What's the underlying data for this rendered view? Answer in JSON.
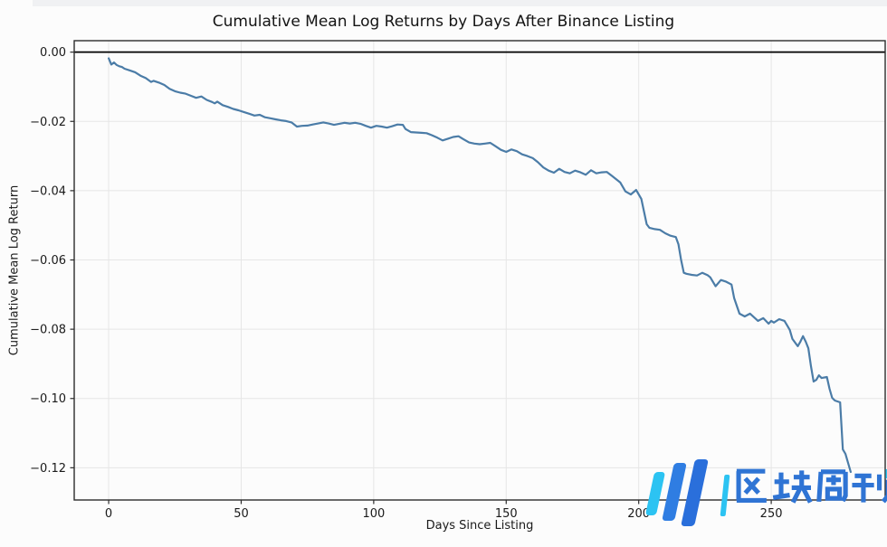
{
  "chart_data": {
    "type": "line",
    "title": "Cumulative Mean Log Returns by Days After Binance Listing",
    "xlabel": "Days Since Listing",
    "ylabel": "Cumulative Mean Log Return",
    "xlim": [
      -13,
      293
    ],
    "ylim": [
      -0.1293,
      0.0033
    ],
    "grid": true,
    "legend": false,
    "zero_line": 0,
    "x_ticks": [
      {
        "value": 0,
        "label": "0"
      },
      {
        "value": 50,
        "label": "50"
      },
      {
        "value": 100,
        "label": "100"
      },
      {
        "value": 150,
        "label": "150"
      },
      {
        "value": 200,
        "label": "200"
      },
      {
        "value": 250,
        "label": "250"
      }
    ],
    "y_ticks": [
      {
        "value": 0.0,
        "label": "0.00"
      },
      {
        "value": -0.02,
        "label": "−0.02"
      },
      {
        "value": -0.04,
        "label": "−0.04"
      },
      {
        "value": -0.06,
        "label": "−0.06"
      },
      {
        "value": -0.08,
        "label": "−0.08"
      },
      {
        "value": -0.1,
        "label": "−0.10"
      },
      {
        "value": -0.12,
        "label": "−0.12"
      }
    ],
    "colors": {
      "line": "#4b7ca7",
      "grid": "#e6e6e6",
      "zero_line": "#000000",
      "spine": "#2c2c2c",
      "text": "#1a1a1a"
    },
    "series": [
      {
        "name": "Cumulative mean log return",
        "points": [
          [
            0,
            -0.0018
          ],
          [
            1,
            -0.0036
          ],
          [
            2,
            -0.003
          ],
          [
            3,
            -0.0037
          ],
          [
            4,
            -0.0041
          ],
          [
            5,
            -0.0043
          ],
          [
            6,
            -0.0048
          ],
          [
            8,
            -0.0053
          ],
          [
            10,
            -0.0058
          ],
          [
            12,
            -0.0068
          ],
          [
            14,
            -0.0075
          ],
          [
            16,
            -0.0086
          ],
          [
            17,
            -0.0083
          ],
          [
            19,
            -0.0088
          ],
          [
            21,
            -0.0095
          ],
          [
            23,
            -0.0106
          ],
          [
            25,
            -0.0113
          ],
          [
            27,
            -0.0117
          ],
          [
            29,
            -0.012
          ],
          [
            31,
            -0.0126
          ],
          [
            33,
            -0.0132
          ],
          [
            35,
            -0.0128
          ],
          [
            37,
            -0.0138
          ],
          [
            39,
            -0.0144
          ],
          [
            40,
            -0.0148
          ],
          [
            41,
            -0.0143
          ],
          [
            43,
            -0.0153
          ],
          [
            45,
            -0.0158
          ],
          [
            47,
            -0.0164
          ],
          [
            49,
            -0.0168
          ],
          [
            51,
            -0.0173
          ],
          [
            53,
            -0.0178
          ],
          [
            55,
            -0.0183
          ],
          [
            57,
            -0.0181
          ],
          [
            59,
            -0.0188
          ],
          [
            61,
            -0.0191
          ],
          [
            63,
            -0.0194
          ],
          [
            65,
            -0.0197
          ],
          [
            67,
            -0.0199
          ],
          [
            69,
            -0.0203
          ],
          [
            71,
            -0.0215
          ],
          [
            73,
            -0.0213
          ],
          [
            75,
            -0.0212
          ],
          [
            77,
            -0.0209
          ],
          [
            79,
            -0.0206
          ],
          [
            81,
            -0.0203
          ],
          [
            83,
            -0.0206
          ],
          [
            85,
            -0.021
          ],
          [
            87,
            -0.0207
          ],
          [
            89,
            -0.0204
          ],
          [
            91,
            -0.0206
          ],
          [
            93,
            -0.0204
          ],
          [
            95,
            -0.0207
          ],
          [
            97,
            -0.0213
          ],
          [
            99,
            -0.0218
          ],
          [
            101,
            -0.0213
          ],
          [
            103,
            -0.0215
          ],
          [
            105,
            -0.0218
          ],
          [
            107,
            -0.0214
          ],
          [
            109,
            -0.0209
          ],
          [
            111,
            -0.021
          ],
          [
            112,
            -0.0222
          ],
          [
            114,
            -0.0231
          ],
          [
            116,
            -0.0232
          ],
          [
            118,
            -0.0233
          ],
          [
            120,
            -0.0234
          ],
          [
            122,
            -0.024
          ],
          [
            124,
            -0.0247
          ],
          [
            126,
            -0.0255
          ],
          [
            128,
            -0.025
          ],
          [
            130,
            -0.0245
          ],
          [
            132,
            -0.0243
          ],
          [
            134,
            -0.0252
          ],
          [
            136,
            -0.0261
          ],
          [
            138,
            -0.0264
          ],
          [
            140,
            -0.0266
          ],
          [
            142,
            -0.0264
          ],
          [
            144,
            -0.0262
          ],
          [
            146,
            -0.0272
          ],
          [
            148,
            -0.0282
          ],
          [
            150,
            -0.0288
          ],
          [
            152,
            -0.0281
          ],
          [
            154,
            -0.0286
          ],
          [
            156,
            -0.0295
          ],
          [
            158,
            -0.03
          ],
          [
            160,
            -0.0306
          ],
          [
            162,
            -0.0318
          ],
          [
            164,
            -0.0333
          ],
          [
            166,
            -0.0342
          ],
          [
            168,
            -0.0348
          ],
          [
            170,
            -0.0337
          ],
          [
            172,
            -0.0346
          ],
          [
            174,
            -0.035
          ],
          [
            176,
            -0.0342
          ],
          [
            178,
            -0.0347
          ],
          [
            180,
            -0.0354
          ],
          [
            182,
            -0.0341
          ],
          [
            184,
            -0.035
          ],
          [
            186,
            -0.0347
          ],
          [
            188,
            -0.0346
          ],
          [
            190,
            -0.0358
          ],
          [
            193,
            -0.0376
          ],
          [
            195,
            -0.0402
          ],
          [
            197,
            -0.0411
          ],
          [
            199,
            -0.0398
          ],
          [
            200,
            -0.0411
          ],
          [
            201,
            -0.0424
          ],
          [
            202,
            -0.046
          ],
          [
            203,
            -0.0497
          ],
          [
            204,
            -0.0507
          ],
          [
            206,
            -0.0511
          ],
          [
            208,
            -0.0513
          ],
          [
            210,
            -0.0523
          ],
          [
            212,
            -0.053
          ],
          [
            214,
            -0.0534
          ],
          [
            215,
            -0.0555
          ],
          [
            216,
            -0.06
          ],
          [
            217,
            -0.0637
          ],
          [
            218,
            -0.064
          ],
          [
            220,
            -0.0643
          ],
          [
            222,
            -0.0645
          ],
          [
            224,
            -0.0637
          ],
          [
            226,
            -0.0644
          ],
          [
            227,
            -0.065
          ],
          [
            229,
            -0.0676
          ],
          [
            231,
            -0.0658
          ],
          [
            233,
            -0.0663
          ],
          [
            235,
            -0.0671
          ],
          [
            236,
            -0.071
          ],
          [
            238,
            -0.0755
          ],
          [
            240,
            -0.0763
          ],
          [
            242,
            -0.0755
          ],
          [
            245,
            -0.0776
          ],
          [
            247,
            -0.0768
          ],
          [
            249,
            -0.0784
          ],
          [
            250,
            -0.0776
          ],
          [
            251,
            -0.0781
          ],
          [
            253,
            -0.0771
          ],
          [
            255,
            -0.0776
          ],
          [
            256,
            -0.0789
          ],
          [
            257,
            -0.0802
          ],
          [
            258,
            -0.0828
          ],
          [
            260,
            -0.0849
          ],
          [
            261,
            -0.0836
          ],
          [
            262,
            -0.082
          ],
          [
            263,
            -0.0836
          ],
          [
            264,
            -0.0855
          ],
          [
            265,
            -0.0907
          ],
          [
            266,
            -0.0951
          ],
          [
            267,
            -0.0946
          ],
          [
            268,
            -0.0933
          ],
          [
            269,
            -0.0941
          ],
          [
            271,
            -0.0938
          ],
          [
            272,
            -0.0972
          ],
          [
            273,
            -0.0998
          ],
          [
            274,
            -0.1006
          ],
          [
            276,
            -0.1011
          ],
          [
            277,
            -0.1147
          ],
          [
            278,
            -0.116
          ],
          [
            279,
            -0.1186
          ],
          [
            280,
            -0.1212
          ]
        ]
      }
    ]
  },
  "watermark": {
    "text": "区块周刊",
    "blue": "#2f74d4",
    "cyan": "#2cc3f2"
  }
}
